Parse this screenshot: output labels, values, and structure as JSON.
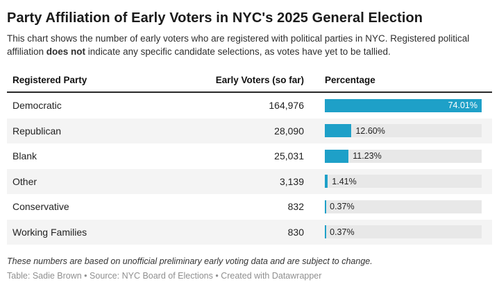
{
  "header": {
    "title": "Party Affiliation of Early Voters in NYC's 2025 General Election",
    "description_before": "This chart shows the number of early voters who are registered with political parties in NYC. Registered political affiliation ",
    "description_bold": "does not",
    "description_after": " indicate any specific candidate selections, as votes have yet to be tallied."
  },
  "table": {
    "columns": {
      "party": "Registered Party",
      "voters": "Early Voters (so far)",
      "percentage": "Percentage"
    },
    "bar_scale_max": 74.01,
    "rows": [
      {
        "party": "Democratic",
        "voters": "164,976",
        "pct": 74.01,
        "pct_label": "74.01%",
        "label_inside": true
      },
      {
        "party": "Republican",
        "voters": "28,090",
        "pct": 12.6,
        "pct_label": "12.60%",
        "label_inside": false
      },
      {
        "party": "Blank",
        "voters": "25,031",
        "pct": 11.23,
        "pct_label": "11.23%",
        "label_inside": false
      },
      {
        "party": "Other",
        "voters": "3,139",
        "pct": 1.41,
        "pct_label": "1.41%",
        "label_inside": false
      },
      {
        "party": "Conservative",
        "voters": "832",
        "pct": 0.37,
        "pct_label": "0.37%",
        "label_inside": false
      },
      {
        "party": "Working Families",
        "voters": "830",
        "pct": 0.37,
        "pct_label": "0.37%",
        "label_inside": false
      }
    ]
  },
  "footer": {
    "note": "These numbers are based on unofficial preliminary early voting data and are subject to change.",
    "byline": "Table: Sadie Brown • Source: NYC Board of Elections • Created with Datawrapper"
  },
  "colors": {
    "bar": "#1ea0c8",
    "bar_track": "#e8e8e8",
    "row_stripe": "#f4f4f4",
    "header_rule": "#282828"
  },
  "chart_data": {
    "type": "bar",
    "title": "Party Affiliation of Early Voters in NYC's 2025 General Election",
    "subtitle": "This chart shows the number of early voters who are registered with political parties in NYC. Registered political affiliation does not indicate any specific candidate selections, as votes have yet to be tallied.",
    "categories": [
      "Democratic",
      "Republican",
      "Blank",
      "Other",
      "Conservative",
      "Working Families"
    ],
    "series": [
      {
        "name": "Early Voters (so far)",
        "values": [
          164976,
          28090,
          25031,
          3139,
          832,
          830
        ]
      },
      {
        "name": "Percentage",
        "values": [
          74.01,
          12.6,
          11.23,
          1.41,
          0.37,
          0.37
        ]
      }
    ],
    "xlabel": "",
    "ylabel": "",
    "bar_axis_range": [
      0,
      74.01
    ],
    "grid": false,
    "legend_position": "none",
    "orientation": "horizontal",
    "annotations": [
      "These numbers are based on unofficial preliminary early voting data and are subject to change.",
      "Table: Sadie Brown • Source: NYC Board of Elections • Created with Datawrapper"
    ]
  }
}
